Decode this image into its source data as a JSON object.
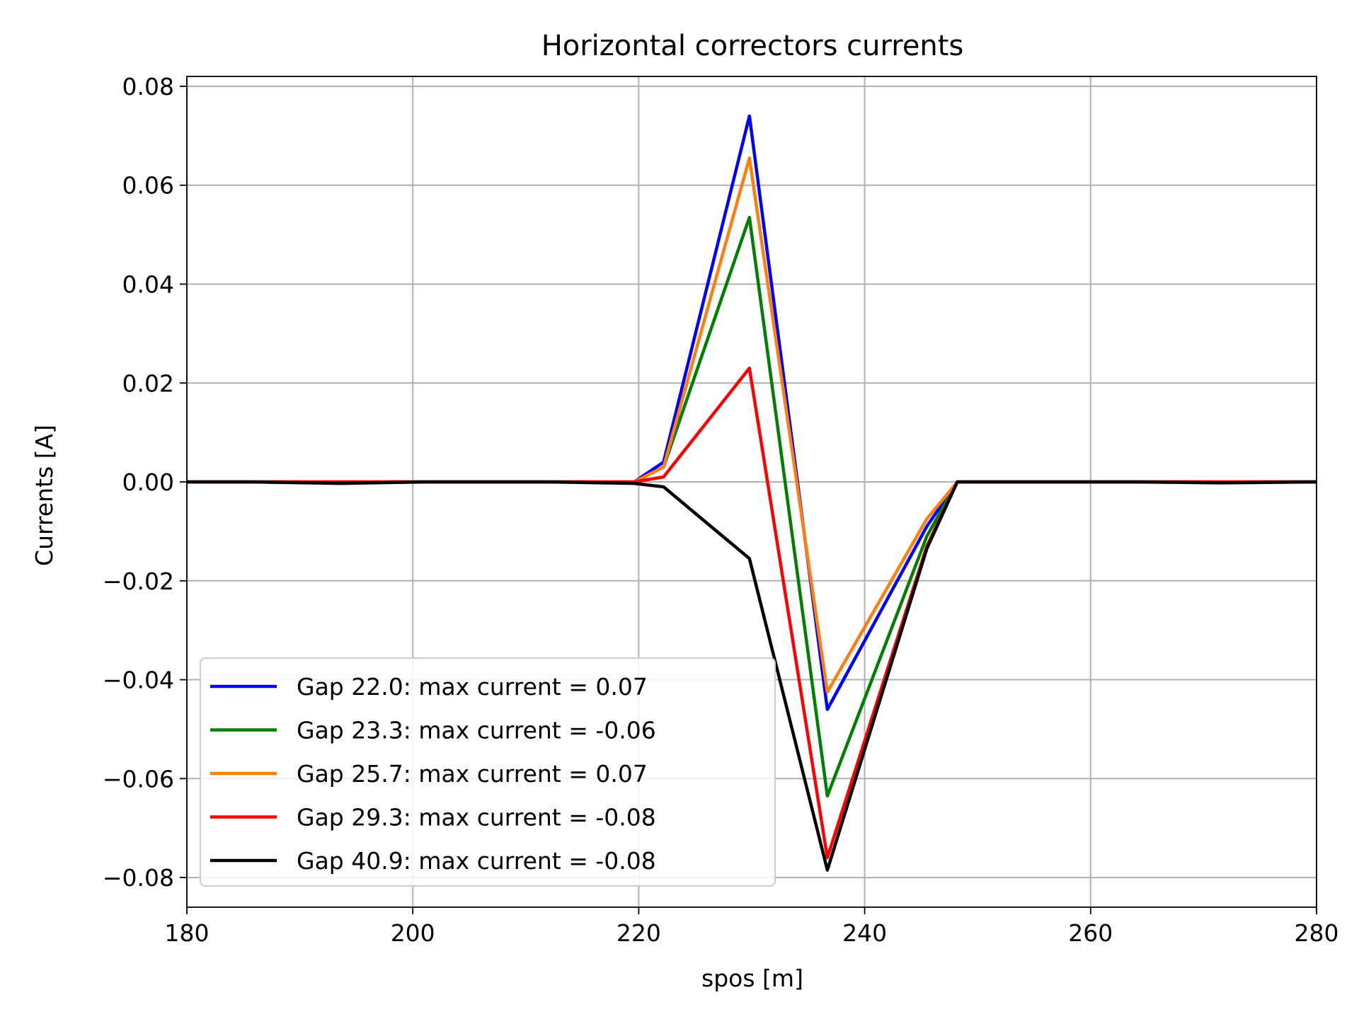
{
  "chart_data": {
    "type": "line",
    "title": "Horizontal correctors currents",
    "xlabel": "spos [m]",
    "ylabel": "Currents [A]",
    "xlim": [
      180,
      280
    ],
    "ylim": [
      -0.086,
      0.082
    ],
    "grid": true,
    "legend_position": "lower-left",
    "x_ticks": [
      {
        "value": 180,
        "label": "180"
      },
      {
        "value": 200,
        "label": "200"
      },
      {
        "value": 220,
        "label": "220"
      },
      {
        "value": 240,
        "label": "240"
      },
      {
        "value": 260,
        "label": "260"
      },
      {
        "value": 280,
        "label": "280"
      }
    ],
    "y_ticks": [
      {
        "value": 0.08,
        "label": "0.08"
      },
      {
        "value": 0.06,
        "label": "0.06"
      },
      {
        "value": 0.04,
        "label": "0.04"
      },
      {
        "value": 0.02,
        "label": "0.02"
      },
      {
        "value": 0.0,
        "label": "0.00"
      },
      {
        "value": -0.02,
        "label": "−0.02"
      },
      {
        "value": -0.04,
        "label": "−0.04"
      },
      {
        "value": -0.06,
        "label": "−0.06"
      },
      {
        "value": -0.08,
        "label": "−0.08"
      }
    ],
    "series": [
      {
        "name": "Gap 22.0: max current = 0.07",
        "color": "#0000ff",
        "x": [
          180,
          185.6,
          193.7,
          201.4,
          211.9,
          219.6,
          222.2,
          229.8,
          236.7,
          245.5,
          248.2,
          255.9,
          263.9,
          271.5,
          280
        ],
        "y": [
          0.0,
          0.0,
          0.0,
          0.0,
          0.0,
          0.0,
          0.004,
          0.074,
          -0.046,
          -0.009,
          0.0,
          0.0,
          0.0,
          0.0,
          0.0
        ]
      },
      {
        "name": "Gap 23.3: max current = -0.06",
        "color": "#008000",
        "x": [
          180,
          185.6,
          193.7,
          201.4,
          211.9,
          219.6,
          222.2,
          229.8,
          236.7,
          245.5,
          248.2,
          255.9,
          263.9,
          271.5,
          280
        ],
        "y": [
          0.0,
          0.0,
          0.0,
          0.0,
          0.0,
          0.0,
          0.003,
          0.0535,
          -0.0635,
          -0.011,
          0.0,
          0.0,
          0.0,
          0.0,
          0.0
        ]
      },
      {
        "name": "Gap 25.7: max current = 0.07",
        "color": "#ff7f0e",
        "x": [
          180,
          185.6,
          193.7,
          201.4,
          211.9,
          219.6,
          222.2,
          229.8,
          236.7,
          245.5,
          248.2,
          255.9,
          263.9,
          271.5,
          280
        ],
        "y": [
          0.0,
          0.0,
          0.0,
          0.0,
          0.0,
          0.0,
          0.003,
          0.0655,
          -0.0425,
          -0.0075,
          0.0,
          0.0,
          0.0,
          0.0,
          0.0
        ]
      },
      {
        "name": "Gap 29.3: max current = -0.08",
        "color": "#ff0000",
        "x": [
          180,
          185.6,
          193.7,
          201.4,
          211.9,
          219.6,
          222.2,
          229.8,
          236.7,
          245.5,
          248.2,
          255.9,
          263.9,
          271.5,
          280
        ],
        "y": [
          0.0,
          0.0,
          0.0,
          0.0,
          0.0,
          0.0,
          0.001,
          0.023,
          -0.076,
          -0.013,
          0.0,
          0.0,
          0.0,
          0.0,
          0.0
        ]
      },
      {
        "name": "Gap 40.9: max current = -0.08",
        "color": "#000000",
        "x": [
          180,
          185.6,
          193.7,
          201.4,
          211.9,
          219.6,
          222.2,
          229.8,
          236.7,
          245.5,
          248.2,
          255.9,
          263.9,
          271.5,
          280
        ],
        "y": [
          0.0,
          0.0,
          -0.0003,
          0.0,
          0.0,
          -0.0003,
          -0.001,
          -0.0155,
          -0.0785,
          -0.0135,
          0.0,
          0.0,
          0.0,
          -0.0002,
          0.0
        ]
      }
    ]
  }
}
